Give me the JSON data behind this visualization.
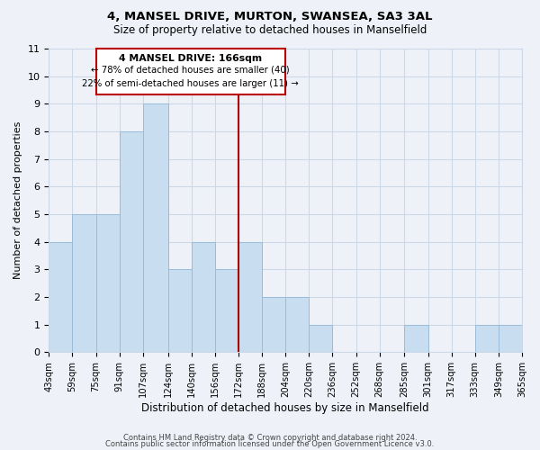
{
  "title": "4, MANSEL DRIVE, MURTON, SWANSEA, SA3 3AL",
  "subtitle": "Size of property relative to detached houses in Manselfield",
  "bar_counts": [
    4,
    5,
    5,
    8,
    9,
    3,
    4,
    3,
    4,
    2,
    2,
    1,
    0,
    0,
    0,
    1,
    0,
    0,
    1,
    1
  ],
  "bin_edges": [
    43,
    59,
    75,
    91,
    107,
    124,
    140,
    156,
    172,
    188,
    204,
    220,
    236,
    252,
    268,
    285,
    301,
    317,
    333,
    349,
    365
  ],
  "tick_labels": [
    "43sqm",
    "59sqm",
    "75sqm",
    "91sqm",
    "107sqm",
    "124sqm",
    "140sqm",
    "156sqm",
    "172sqm",
    "188sqm",
    "204sqm",
    "220sqm",
    "236sqm",
    "252sqm",
    "268sqm",
    "285sqm",
    "301sqm",
    "317sqm",
    "333sqm",
    "349sqm",
    "365sqm"
  ],
  "bar_color": "#c8ddf0",
  "bar_edge_color": "#9abcd8",
  "grid_color": "#ccd8e8",
  "background_color": "#eef2f8",
  "reference_line_x": 172,
  "reference_line_color": "#aa0000",
  "annotation_title": "4 MANSEL DRIVE: 166sqm",
  "annotation_line1": "← 78% of detached houses are smaller (40)",
  "annotation_line2": "22% of semi-detached houses are larger (11) →",
  "annotation_box_edgecolor": "#bb0000",
  "annotation_box_facecolor": "#ffffff",
  "xlabel": "Distribution of detached houses by size in Manselfield",
  "ylabel": "Number of detached properties",
  "ylim": [
    0,
    11
  ],
  "yticks": [
    0,
    1,
    2,
    3,
    4,
    5,
    6,
    7,
    8,
    9,
    10,
    11
  ],
  "footer1": "Contains HM Land Registry data © Crown copyright and database right 2024.",
  "footer2": "Contains public sector information licensed under the Open Government Licence v3.0."
}
